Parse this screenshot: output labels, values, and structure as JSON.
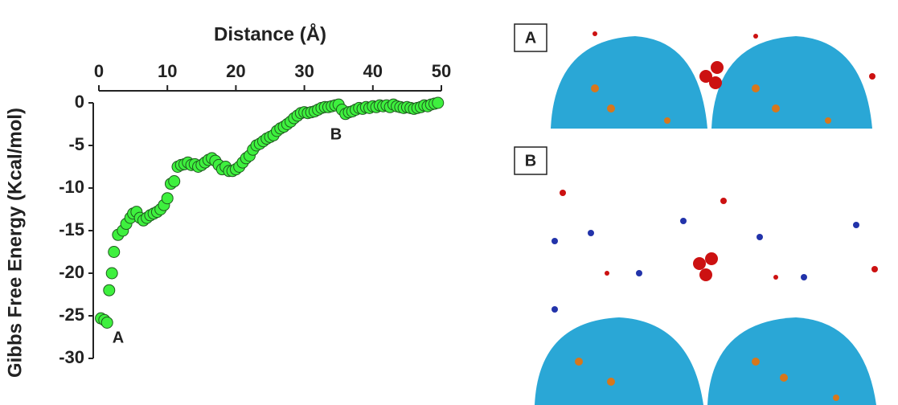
{
  "chart_data": {
    "type": "scatter",
    "xlabel": "Distance (Å)",
    "ylabel": "Gibbs Free Energy (Kcal/mol)",
    "xlim": [
      0,
      50
    ],
    "xticks": [
      0,
      10,
      20,
      30,
      40,
      50
    ],
    "ylim": [
      -30,
      0
    ],
    "yticks": [
      0,
      -5,
      -10,
      -15,
      -20,
      -25,
      -30
    ],
    "annotations": [
      "A",
      "B"
    ],
    "series": [
      {
        "color": "#3ef03e",
        "x": [
          0.3,
          0.8,
          1.2,
          1.5,
          1.9,
          2.2,
          2.8,
          3.5,
          4,
          4.6,
          5,
          5.5,
          6,
          6.5,
          7,
          7.5,
          8,
          8.5,
          9,
          9.5,
          10,
          10.5,
          11,
          11.5,
          12,
          12.5,
          13,
          13.5,
          14,
          14.5,
          15,
          15.5,
          16,
          16.5,
          17,
          17.5,
          18,
          18.5,
          19,
          19.5,
          20,
          20.5,
          21,
          21.5,
          22,
          22.5,
          23,
          23.5,
          24,
          24.5,
          25,
          25.5,
          26,
          26.5,
          27,
          27.5,
          28,
          28.5,
          29,
          29.5,
          30,
          30.5,
          31,
          31.5,
          32,
          32.5,
          33,
          33.5,
          34,
          34.5,
          35,
          35.5,
          36,
          36.5,
          37,
          37.5,
          38,
          38.5,
          39,
          39.5,
          40,
          40.5,
          41,
          41.5,
          42,
          42.5,
          43,
          43.5,
          44,
          44.5,
          45,
          45.5,
          46,
          46.5,
          47,
          47.5,
          48,
          48.5,
          49,
          49.5
        ],
        "values": [
          -25.3,
          -25.5,
          -25.8,
          -22,
          -20,
          -17.5,
          -15.5,
          -15,
          -14.2,
          -13.5,
          -13,
          -12.8,
          -13.5,
          -13.8,
          -13.5,
          -13.2,
          -13,
          -12.8,
          -12.5,
          -12,
          -11.2,
          -9.5,
          -9.2,
          -7.5,
          -7.3,
          -7.2,
          -7,
          -7.3,
          -7.2,
          -7.5,
          -7.3,
          -7,
          -6.7,
          -6.5,
          -6.8,
          -7.3,
          -7.8,
          -7.5,
          -8,
          -8,
          -7.8,
          -7.5,
          -7,
          -6.5,
          -6.2,
          -5.5,
          -5,
          -4.8,
          -4.5,
          -4.2,
          -4,
          -3.8,
          -3.3,
          -3,
          -2.8,
          -2.5,
          -2.2,
          -1.8,
          -1.5,
          -1.2,
          -1.1,
          -1.2,
          -1.1,
          -1,
          -0.8,
          -0.6,
          -0.5,
          -0.5,
          -0.4,
          -0.3,
          -0.2,
          -0.8,
          -1.3,
          -1.1,
          -1,
          -0.8,
          -0.6,
          -0.7,
          -0.5,
          -0.6,
          -0.4,
          -0.5,
          -0.3,
          -0.4,
          -0.3,
          -0.5,
          -0.2,
          -0.4,
          -0.5,
          -0.6,
          -0.5,
          -0.6,
          -0.7,
          -0.6,
          -0.5,
          -0.3,
          -0.4,
          -0.2,
          -0.1,
          0
        ]
      }
    ]
  },
  "panels": [
    {
      "label": "A"
    },
    {
      "label": "B"
    }
  ]
}
